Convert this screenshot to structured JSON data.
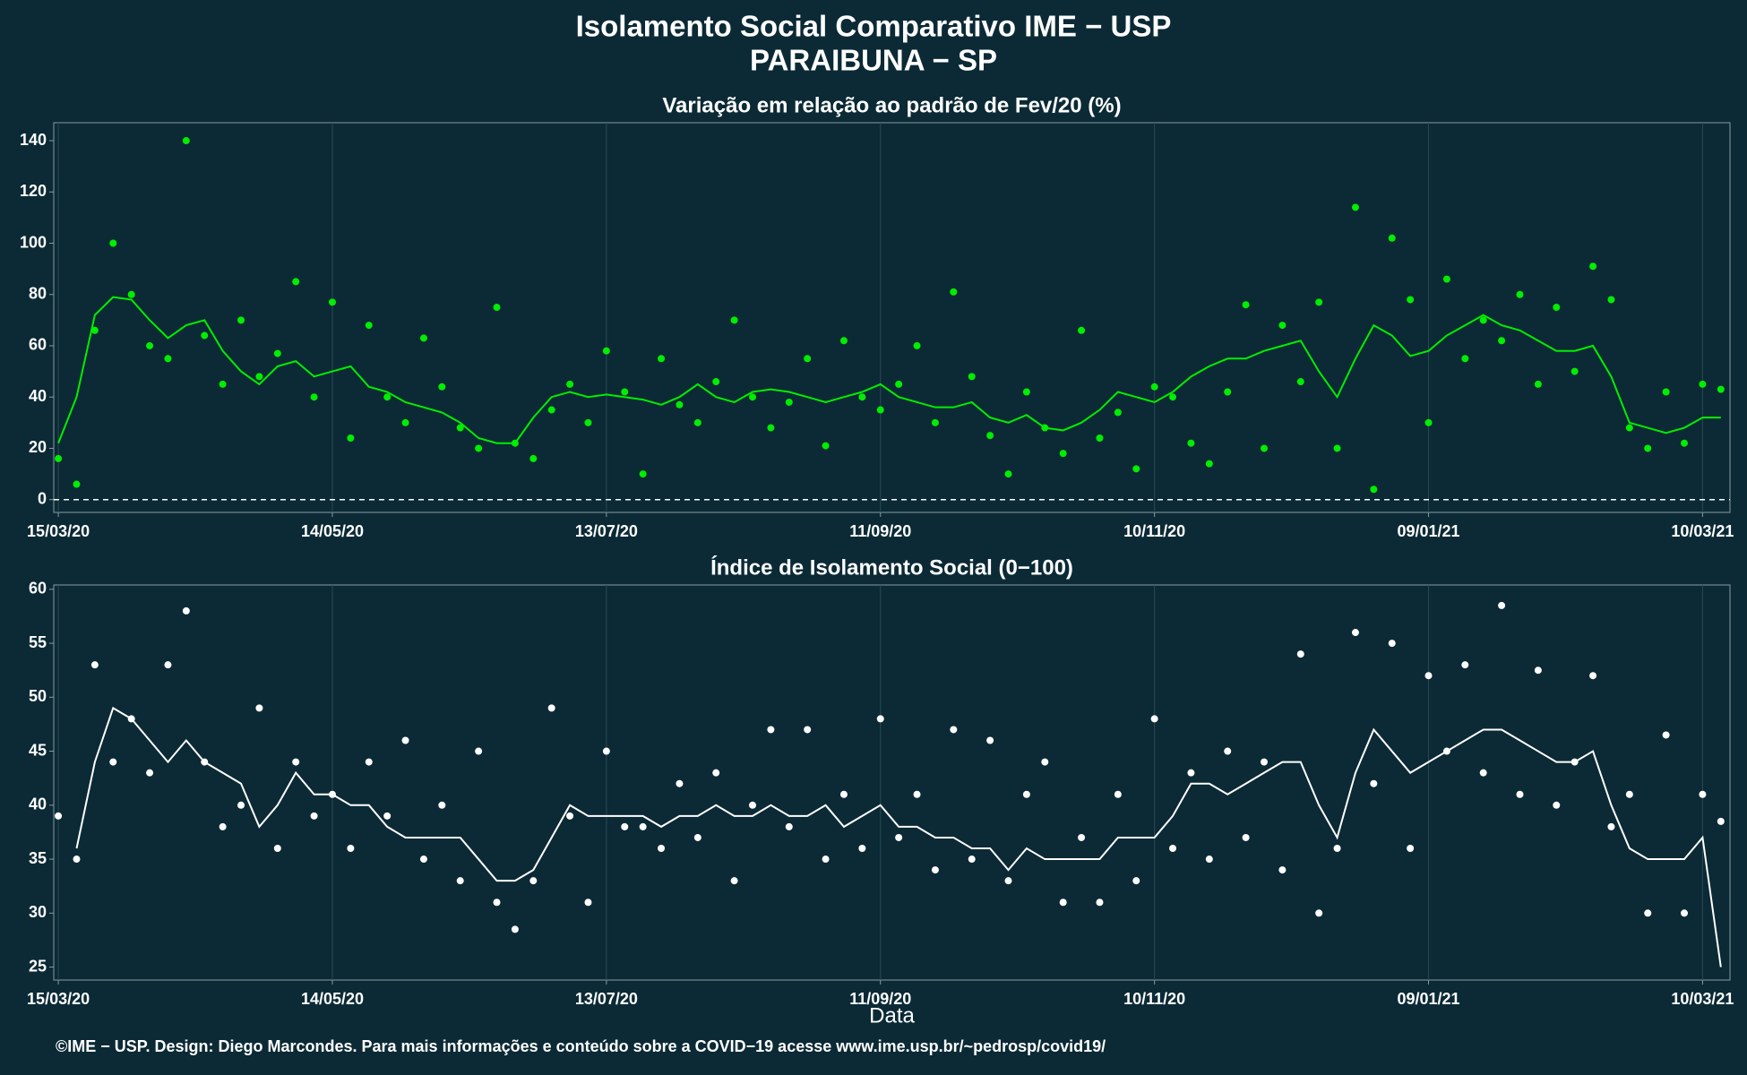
{
  "title": "Isolamento Social Comparativo IME − USP",
  "subtitle": "PARAIBUNA − SP",
  "footer": "©IME − USP. Design: Diego Marcondes. Para mais informações e conteúdo sobre a COVID−19 acesse www.ime.usp.br/~pedrosp/covid19/",
  "chart_data": [
    {
      "type": "line",
      "title": "Variação em relação ao padrão de Fev/20 (%)",
      "x": [
        "2020-03-15",
        "2020-03-19",
        "2020-03-23",
        "2020-03-27",
        "2020-03-31",
        "2020-04-04",
        "2020-04-08",
        "2020-04-12",
        "2020-04-16",
        "2020-04-20",
        "2020-04-24",
        "2020-04-28",
        "2020-05-02",
        "2020-05-06",
        "2020-05-10",
        "2020-05-14",
        "2020-05-18",
        "2020-05-22",
        "2020-05-26",
        "2020-05-30",
        "2020-06-03",
        "2020-06-07",
        "2020-06-11",
        "2020-06-15",
        "2020-06-19",
        "2020-06-23",
        "2020-06-27",
        "2020-07-01",
        "2020-07-05",
        "2020-07-09",
        "2020-07-13",
        "2020-07-17",
        "2020-07-21",
        "2020-07-25",
        "2020-07-29",
        "2020-08-02",
        "2020-08-06",
        "2020-08-10",
        "2020-08-14",
        "2020-08-18",
        "2020-08-22",
        "2020-08-26",
        "2020-08-30",
        "2020-09-03",
        "2020-09-07",
        "2020-09-11",
        "2020-09-15",
        "2020-09-19",
        "2020-09-23",
        "2020-09-27",
        "2020-10-01",
        "2020-10-05",
        "2020-10-09",
        "2020-10-13",
        "2020-10-17",
        "2020-10-21",
        "2020-10-25",
        "2020-10-29",
        "2020-11-02",
        "2020-11-06",
        "2020-11-10",
        "2020-11-14",
        "2020-11-18",
        "2020-11-22",
        "2020-11-26",
        "2020-11-30",
        "2020-12-04",
        "2020-12-08",
        "2020-12-12",
        "2020-12-16",
        "2020-12-20",
        "2020-12-24",
        "2020-12-28",
        "2021-01-01",
        "2021-01-05",
        "2021-01-09",
        "2021-01-13",
        "2021-01-17",
        "2021-01-21",
        "2021-01-25",
        "2021-01-29",
        "2021-02-02",
        "2021-02-06",
        "2021-02-10",
        "2021-02-14",
        "2021-02-18",
        "2021-02-22",
        "2021-02-26",
        "2021-03-02",
        "2021-03-06",
        "2021-03-10",
        "2021-03-14"
      ],
      "series": [
        {
          "mode": "markers",
          "color": "#00ee00",
          "values": [
            16,
            6,
            66,
            100,
            80,
            60,
            55,
            140,
            64,
            45,
            70,
            48,
            57,
            85,
            40,
            77,
            24,
            68,
            40,
            30,
            63,
            44,
            28,
            20,
            75,
            22,
            16,
            35,
            45,
            30,
            58,
            42,
            10,
            55,
            37,
            30,
            46,
            70,
            40,
            28,
            38,
            55,
            21,
            62,
            40,
            35,
            45,
            60,
            30,
            81,
            48,
            25,
            10,
            42,
            28,
            18,
            66,
            24,
            34,
            12,
            44,
            40,
            22,
            14,
            42,
            76,
            20,
            68,
            46,
            77,
            20,
            114,
            4,
            102,
            78,
            30,
            86,
            55,
            70,
            62,
            80,
            45,
            75,
            50,
            91,
            78,
            28,
            20,
            42,
            22,
            45,
            43
          ]
        },
        {
          "mode": "lines",
          "color": "#00ee00",
          "values": [
            22,
            40,
            72,
            79,
            78,
            70,
            63,
            68,
            70,
            58,
            50,
            45,
            52,
            54,
            48,
            50,
            52,
            44,
            42,
            38,
            36,
            34,
            30,
            24,
            22,
            22,
            32,
            40,
            42,
            40,
            41,
            40,
            39,
            37,
            40,
            45,
            40,
            38,
            42,
            43,
            42,
            40,
            38,
            40,
            42,
            45,
            40,
            38,
            36,
            36,
            38,
            32,
            30,
            33,
            28,
            27,
            30,
            35,
            42,
            40,
            38,
            42,
            48,
            52,
            55,
            55,
            58,
            60,
            62,
            50,
            40,
            55,
            68,
            64,
            56,
            58,
            64,
            68,
            72,
            68,
            66,
            62,
            58,
            58,
            60,
            48,
            30,
            28,
            26,
            28,
            32,
            32
          ]
        }
      ],
      "xlim": [
        "2020-03-14",
        "2021-03-16"
      ],
      "xticks": [
        {
          "value": "2020-03-15",
          "label": "15/03/20"
        },
        {
          "value": "2020-05-14",
          "label": "14/05/20"
        },
        {
          "value": "2020-07-13",
          "label": "13/07/20"
        },
        {
          "value": "2020-09-11",
          "label": "11/09/20"
        },
        {
          "value": "2020-11-10",
          "label": "10/11/20"
        },
        {
          "value": "2021-01-09",
          "label": "09/01/21"
        },
        {
          "value": "2021-03-10",
          "label": "10/03/21"
        }
      ],
      "ylim": [
        -5,
        147
      ],
      "yticks": [
        0,
        20,
        40,
        60,
        80,
        100,
        120,
        140
      ],
      "grid": "x",
      "reference_line": 0
    },
    {
      "type": "line",
      "title": "Índice de Isolamento Social (0−100)",
      "xlabel": "Data",
      "x": [
        "2020-03-15",
        "2020-03-19",
        "2020-03-23",
        "2020-03-27",
        "2020-03-31",
        "2020-04-04",
        "2020-04-08",
        "2020-04-12",
        "2020-04-16",
        "2020-04-20",
        "2020-04-24",
        "2020-04-28",
        "2020-05-02",
        "2020-05-06",
        "2020-05-10",
        "2020-05-14",
        "2020-05-18",
        "2020-05-22",
        "2020-05-26",
        "2020-05-30",
        "2020-06-03",
        "2020-06-07",
        "2020-06-11",
        "2020-06-15",
        "2020-06-19",
        "2020-06-23",
        "2020-06-27",
        "2020-07-01",
        "2020-07-05",
        "2020-07-09",
        "2020-07-13",
        "2020-07-17",
        "2020-07-21",
        "2020-07-25",
        "2020-07-29",
        "2020-08-02",
        "2020-08-06",
        "2020-08-10",
        "2020-08-14",
        "2020-08-18",
        "2020-08-22",
        "2020-08-26",
        "2020-08-30",
        "2020-09-03",
        "2020-09-07",
        "2020-09-11",
        "2020-09-15",
        "2020-09-19",
        "2020-09-23",
        "2020-09-27",
        "2020-10-01",
        "2020-10-05",
        "2020-10-09",
        "2020-10-13",
        "2020-10-17",
        "2020-10-21",
        "2020-10-25",
        "2020-10-29",
        "2020-11-02",
        "2020-11-06",
        "2020-11-10",
        "2020-11-14",
        "2020-11-18",
        "2020-11-22",
        "2020-11-26",
        "2020-11-30",
        "2020-12-04",
        "2020-12-08",
        "2020-12-12",
        "2020-12-16",
        "2020-12-20",
        "2020-12-24",
        "2020-12-28",
        "2021-01-01",
        "2021-01-05",
        "2021-01-09",
        "2021-01-13",
        "2021-01-17",
        "2021-01-21",
        "2021-01-25",
        "2021-01-29",
        "2021-02-02",
        "2021-02-06",
        "2021-02-10",
        "2021-02-14",
        "2021-02-18",
        "2021-02-22",
        "2021-02-26",
        "2021-03-02",
        "2021-03-06",
        "2021-03-10",
        "2021-03-14"
      ],
      "series": [
        {
          "mode": "markers",
          "color": "#ffffff",
          "values": [
            39,
            35,
            53,
            44,
            48,
            43,
            53,
            58,
            44,
            38,
            40,
            49,
            36,
            44,
            39,
            41,
            36,
            44,
            39,
            46,
            35,
            40,
            33,
            45,
            31,
            28.5,
            33,
            49,
            39,
            31,
            45,
            38,
            38,
            36,
            42,
            37,
            43,
            33,
            40,
            47,
            38,
            47,
            35,
            41,
            36,
            48,
            37,
            41,
            34,
            47,
            35,
            46,
            33,
            41,
            44,
            31,
            37,
            31,
            41,
            33,
            48,
            36,
            43,
            35,
            45,
            37,
            44,
            34,
            54,
            30,
            36,
            56,
            42,
            55,
            36,
            52,
            45,
            53,
            43,
            58.5,
            41,
            52.5,
            40,
            44,
            52,
            38,
            41,
            30,
            46.5,
            30,
            41,
            38.5
          ]
        },
        {
          "mode": "lines",
          "color": "#ffffff",
          "values": [
            null,
            36,
            44,
            49,
            48,
            46,
            44,
            46,
            44,
            43,
            42,
            38,
            40,
            43,
            41,
            41,
            40,
            40,
            38,
            37,
            37,
            37,
            37,
            35,
            33,
            33,
            34,
            37,
            40,
            39,
            39,
            39,
            39,
            38,
            39,
            39,
            40,
            39,
            39,
            40,
            39,
            39,
            40,
            38,
            39,
            40,
            38,
            38,
            37,
            37,
            36,
            36,
            34,
            36,
            35,
            35,
            35,
            35,
            37,
            37,
            37,
            39,
            42,
            42,
            41,
            42,
            43,
            44,
            44,
            40,
            37,
            43,
            47,
            45,
            43,
            44,
            45,
            46,
            47,
            47,
            46,
            45,
            44,
            44,
            45,
            40,
            36,
            35,
            35,
            35,
            37,
            25
          ]
        }
      ],
      "xlim": [
        "2020-03-14",
        "2021-03-16"
      ],
      "xticks": [
        {
          "value": "2020-03-15",
          "label": "15/03/20"
        },
        {
          "value": "2020-05-14",
          "label": "14/05/20"
        },
        {
          "value": "2020-07-13",
          "label": "13/07/20"
        },
        {
          "value": "2020-09-11",
          "label": "11/09/20"
        },
        {
          "value": "2020-11-10",
          "label": "10/11/20"
        },
        {
          "value": "2021-01-09",
          "label": "09/01/21"
        },
        {
          "value": "2021-03-10",
          "label": "10/03/21"
        }
      ],
      "ylim": [
        23.8,
        60.4
      ],
      "yticks": [
        25,
        30,
        35,
        40,
        45,
        50,
        55,
        60
      ],
      "grid": "x"
    }
  ]
}
